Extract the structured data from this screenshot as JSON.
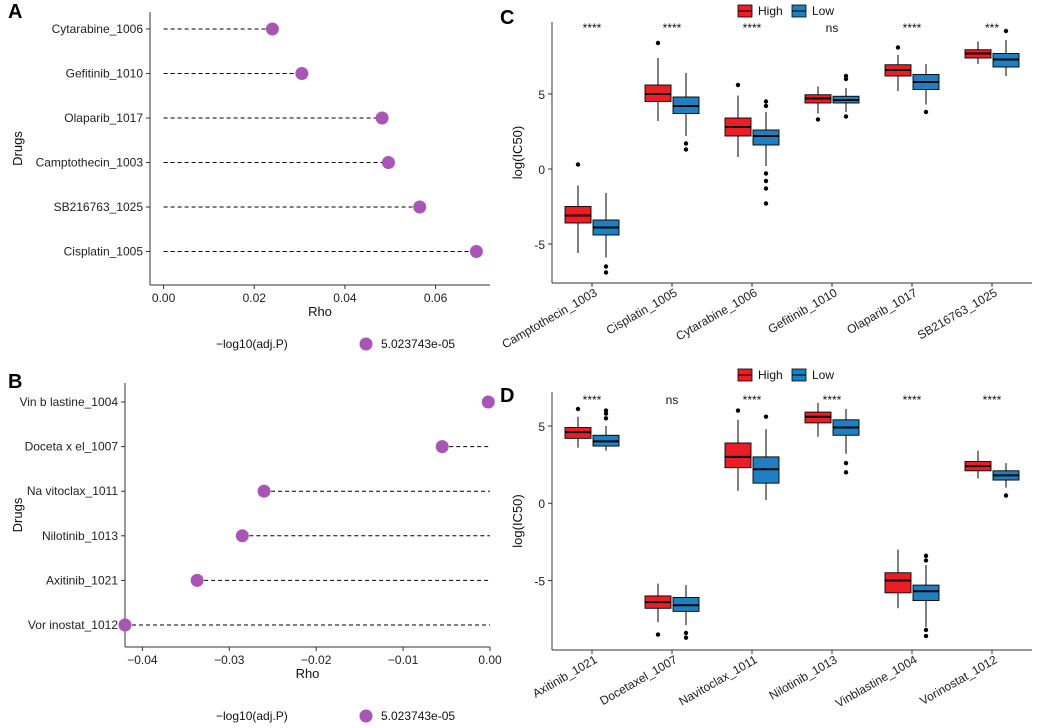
{
  "chart_data": [
    {
      "panel_label": "A",
      "type": "lollipop",
      "categories": [
        "Cytarabine_1006",
        "Gefitinib_1010",
        "Olaparib_1017",
        "Camptothecin_1003",
        "SB216763_1025",
        "Cisplatin_1005"
      ],
      "values": [
        0.024,
        0.0305,
        0.0482,
        0.0496,
        0.0565,
        0.069
      ],
      "xlim": [
        -0.003,
        0.072
      ],
      "xticks": [
        0.0,
        0.02,
        0.04,
        0.06
      ],
      "xtick_labels": [
        "0.00",
        "0.02",
        "0.04",
        "0.06"
      ],
      "xlabel": "Rho",
      "ylabel": "Drugs",
      "legend_title": "−log10(adj.P)",
      "legend_value": "5.023743e-05",
      "point_color": "#a855b5"
    },
    {
      "panel_label": "B",
      "type": "lollipop",
      "categories": [
        "Vin b lastine_1004",
        "Doceta x el_1007",
        "Na vitoclax_1011",
        "Nilotinib_1013",
        "Axitinib_1021",
        "Vor inostat_1012"
      ],
      "values": [
        -0.0002,
        -0.0055,
        -0.026,
        -0.0285,
        -0.0337,
        -0.042
      ],
      "xlim": [
        -0.042,
        0.0
      ],
      "xticks": [
        -0.04,
        -0.03,
        -0.02,
        -0.01,
        0.0
      ],
      "xtick_labels": [
        "−0.04",
        "−0.03",
        "−0.02",
        "−0.01",
        "0.00"
      ],
      "xlabel": "Rho",
      "ylabel": "Drugs",
      "legend_title": "−log10(adj.P)",
      "legend_value": "5.023743e-05",
      "point_color": "#a855b5"
    },
    {
      "panel_label": "C",
      "type": "boxplot",
      "categories": [
        "Camptothecin_1003",
        "Cisplatin_1005",
        "Cytarabine_1006",
        "Gefitinib_1010",
        "Olaparib_1017",
        "SB216763_1025"
      ],
      "significance": [
        "****",
        "****",
        "****",
        "ns",
        "****",
        "***"
      ],
      "ylabel": "log(IC50)",
      "ylim": [
        -7.6,
        9.8
      ],
      "yticks": [
        -5,
        0,
        5
      ],
      "ytick_labels": [
        "-5",
        "0",
        "5"
      ],
      "legend": [
        "High",
        "Low"
      ],
      "colors": {
        "High": "#ee1c25",
        "Low": "#1f7fc0"
      },
      "series": [
        {
          "name": "High",
          "boxes": [
            {
              "min": -5.6,
              "q1": -3.6,
              "median": -3.1,
              "q3": -2.5,
              "max": -1.1,
              "outliers": [
                0.3
              ]
            },
            {
              "min": 3.2,
              "q1": 4.5,
              "median": 5.0,
              "q3": 5.6,
              "max": 7.4,
              "outliers": [
                8.4
              ]
            },
            {
              "min": 0.8,
              "q1": 2.2,
              "median": 2.8,
              "q3": 3.4,
              "max": 4.9,
              "outliers": [
                5.6
              ]
            },
            {
              "min": 3.7,
              "q1": 4.4,
              "median": 4.7,
              "q3": 4.95,
              "max": 5.5,
              "outliers": [
                3.3
              ]
            },
            {
              "min": 5.2,
              "q1": 6.2,
              "median": 6.6,
              "q3": 6.95,
              "max": 7.6,
              "outliers": [
                8.1
              ]
            },
            {
              "min": 7.0,
              "q1": 7.4,
              "median": 7.7,
              "q3": 7.95,
              "max": 8.5,
              "outliers": []
            }
          ]
        },
        {
          "name": "Low",
          "boxes": [
            {
              "min": -5.9,
              "q1": -4.4,
              "median": -3.9,
              "q3": -3.4,
              "max": -1.6,
              "outliers": [
                -6.5,
                -6.9
              ]
            },
            {
              "min": 2.2,
              "q1": 3.7,
              "median": 4.2,
              "q3": 4.8,
              "max": 6.4,
              "outliers": [
                1.7,
                1.3
              ]
            },
            {
              "min": 0.2,
              "q1": 1.6,
              "median": 2.2,
              "q3": 2.6,
              "max": 3.8,
              "outliers": [
                4.5,
                4.2,
                -0.3,
                -0.8,
                -1.3,
                -2.3
              ]
            },
            {
              "min": 3.8,
              "q1": 4.4,
              "median": 4.6,
              "q3": 4.85,
              "max": 5.4,
              "outliers": [
                6.2,
                6.0,
                3.5
              ]
            },
            {
              "min": 4.3,
              "q1": 5.3,
              "median": 5.8,
              "q3": 6.3,
              "max": 7.0,
              "outliers": [
                3.8
              ]
            },
            {
              "min": 6.2,
              "q1": 6.8,
              "median": 7.3,
              "q3": 7.7,
              "max": 8.6,
              "outliers": [
                9.2
              ]
            }
          ]
        }
      ]
    },
    {
      "panel_label": "D",
      "type": "boxplot",
      "categories": [
        "Axitinib_1021",
        "Docetaxel_1007",
        "Navitoclax_1011",
        "Nilotinib_1013",
        "Vinblastine_1004",
        "Vorinostat_1012"
      ],
      "significance": [
        "****",
        "ns",
        "****",
        "****",
        "****",
        "****"
      ],
      "ylabel": "log(IC50)",
      "ylim": [
        -9.5,
        7.2
      ],
      "yticks": [
        -5,
        0,
        5
      ],
      "ytick_labels": [
        "-5",
        "0",
        "5"
      ],
      "legend": [
        "High",
        "Low"
      ],
      "colors": {
        "High": "#ee1c25",
        "Low": "#1f7fc0"
      },
      "series": [
        {
          "name": "High",
          "boxes": [
            {
              "min": 3.6,
              "q1": 4.2,
              "median": 4.6,
              "q3": 4.9,
              "max": 5.6,
              "outliers": [
                6.1
              ]
            },
            {
              "min": -7.7,
              "q1": -6.8,
              "median": -6.4,
              "q3": -6.0,
              "max": -5.2,
              "outliers": [
                -8.5
              ]
            },
            {
              "min": 0.8,
              "q1": 2.3,
              "median": 3.0,
              "q3": 3.9,
              "max": 5.4,
              "outliers": [
                6.0
              ]
            },
            {
              "min": 4.3,
              "q1": 5.2,
              "median": 5.6,
              "q3": 5.9,
              "max": 6.5,
              "outliers": []
            },
            {
              "min": -6.8,
              "q1": -5.8,
              "median": -5.0,
              "q3": -4.5,
              "max": -3.0,
              "outliers": []
            },
            {
              "min": 1.6,
              "q1": 2.1,
              "median": 2.4,
              "q3": 2.7,
              "max": 3.4,
              "outliers": []
            }
          ]
        },
        {
          "name": "Low",
          "boxes": [
            {
              "min": 3.4,
              "q1": 3.7,
              "median": 4.0,
              "q3": 4.4,
              "max": 5.0,
              "outliers": [
                6.0,
                5.8,
                5.5
              ]
            },
            {
              "min": -7.9,
              "q1": -7.0,
              "median": -6.6,
              "q3": -6.1,
              "max": -5.3,
              "outliers": [
                -8.4,
                -8.7
              ]
            },
            {
              "min": 0.2,
              "q1": 1.3,
              "median": 2.2,
              "q3": 3.0,
              "max": 4.8,
              "outliers": [
                5.6
              ]
            },
            {
              "min": 3.2,
              "q1": 4.4,
              "median": 4.9,
              "q3": 5.4,
              "max": 6.1,
              "outliers": [
                2.6,
                2.0
              ]
            },
            {
              "min": -8.0,
              "q1": -6.3,
              "median": -5.7,
              "q3": -5.3,
              "max": -4.0,
              "outliers": [
                -3.4,
                -3.7,
                -8.2,
                -8.6
              ]
            },
            {
              "min": 1.0,
              "q1": 1.5,
              "median": 1.8,
              "q3": 2.1,
              "max": 2.6,
              "outliers": [
                0.5
              ]
            }
          ]
        }
      ]
    }
  ]
}
